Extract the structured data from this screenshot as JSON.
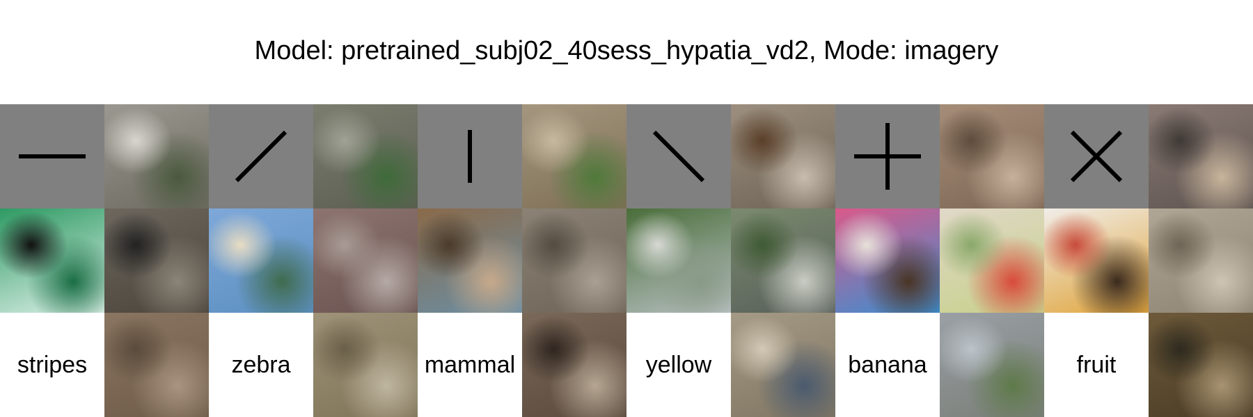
{
  "title": "Model: pretrained_subj02_40sess_hypatia_vd2, Mode: imagery",
  "colors": {
    "cue_background": "#808080",
    "cue_stroke": "#000000",
    "word_background": "#ffffff"
  },
  "columns": [
    {
      "cue": {
        "icon": "horizontal-line-icon"
      },
      "stimulus": {
        "icon": "surfer-wave-photo",
        "colors": [
          "#2e9a63",
          "#dff1ea",
          "#1a6e45",
          "#111111"
        ]
      },
      "word": "stripes"
    },
    {
      "recons": [
        {
          "icon": "recon-gray-wall-figure",
          "colors": [
            "#9b9890",
            "#6d6a60",
            "#4a5a3e",
            "#d8d6cf"
          ]
        },
        {
          "icon": "recon-dark-wall-figures",
          "colors": [
            "#6d675e",
            "#4a443b",
            "#8b8478",
            "#222222"
          ]
        },
        {
          "icon": "recon-brick-wall",
          "colors": [
            "#8a7561",
            "#6e5b48",
            "#a89480",
            "#5a4b3c"
          ]
        }
      ]
    },
    {
      "cue": {
        "icon": "diagonal-right-line-icon"
      },
      "stimulus": {
        "icon": "beach-boats-photo",
        "colors": [
          "#7ea8d9",
          "#5b8fc1",
          "#3f6b4e",
          "#e8dcc3"
        ]
      },
      "word": "zebra"
    },
    {
      "recons": [
        {
          "icon": "recon-stone-steps",
          "colors": [
            "#7b7d6f",
            "#5c5e52",
            "#3f6b3a",
            "#9fa294"
          ]
        },
        {
          "icon": "recon-town-buildings",
          "colors": [
            "#8d7470",
            "#6a5350",
            "#b5aaa5",
            "#a89b95"
          ]
        },
        {
          "icon": "recon-blurred-structure",
          "colors": [
            "#9e9378",
            "#7f7458",
            "#bfb6a0",
            "#6a5f48"
          ]
        }
      ]
    },
    {
      "cue": {
        "icon": "vertical-line-icon"
      },
      "stimulus": {
        "icon": "blue-bird-photo",
        "colors": [
          "#8a6a4a",
          "#6a8fa5",
          "#c7a98a",
          "#4a3a2a"
        ]
      },
      "word": "mammal"
    },
    {
      "recons": [
        {
          "icon": "recon-rocks-plants",
          "colors": [
            "#a5977f",
            "#7d6e55",
            "#4f7a3a",
            "#c7b9a0"
          ]
        },
        {
          "icon": "recon-rock-texture",
          "colors": [
            "#8b8275",
            "#6e6558",
            "#a9a093",
            "#544c41"
          ]
        },
        {
          "icon": "recon-arch-animal",
          "colors": [
            "#7a6858",
            "#5b4b3e",
            "#b5a592",
            "#2f2620"
          ]
        }
      ]
    },
    {
      "cue": {
        "icon": "diagonal-left-line-icon"
      },
      "stimulus": {
        "icon": "river-valley-photo",
        "colors": [
          "#4a6e3a",
          "#b8c0c2",
          "#8a9a88",
          "#d6d8d4"
        ]
      },
      "word": "yellow"
    },
    {
      "recons": [
        {
          "icon": "recon-animal-on-ramp",
          "colors": [
            "#9c8f7f",
            "#6e6456",
            "#c8bcae",
            "#5a3f28"
          ]
        },
        {
          "icon": "recon-street-scene",
          "colors": [
            "#7a8a6e",
            "#585f5a",
            "#c9ccc4",
            "#3f5a34"
          ]
        },
        {
          "icon": "recon-people-outdoors",
          "colors": [
            "#a59a85",
            "#7f7562",
            "#4a5a6e",
            "#d2c8b5"
          ]
        }
      ]
    },
    {
      "cue": {
        "icon": "plus-sign-icon"
      },
      "stimulus": {
        "icon": "donuts-photo",
        "colors": [
          "#d95a8a",
          "#3a8fd1",
          "#4a3424",
          "#e8e2da"
        ]
      },
      "word": "banana"
    },
    {
      "recons": [
        {
          "icon": "recon-stone-relief",
          "colors": [
            "#a58d78",
            "#7d6754",
            "#c6b09b",
            "#5e4c3d"
          ]
        },
        {
          "icon": "recon-fruit-plate",
          "colors": [
            "#e0d8c8",
            "#c7d18a",
            "#d94a3a",
            "#8aa86a"
          ]
        },
        {
          "icon": "recon-rocky-hill",
          "colors": [
            "#9aa0a5",
            "#7a7e78",
            "#5e7a4a",
            "#bcc3c9"
          ]
        }
      ]
    },
    {
      "cue": {
        "icon": "x-cross-icon"
      },
      "stimulus": {
        "icon": "floral-dress-women-photo",
        "colors": [
          "#f0ede8",
          "#e0a43a",
          "#3a2a1e",
          "#c84a3a"
        ]
      },
      "word": "fruit"
    },
    {
      "recons": [
        {
          "icon": "recon-figurines",
          "colors": [
            "#8a7a74",
            "#5e5450",
            "#c8b59c",
            "#3f3a36"
          ]
        },
        {
          "icon": "recon-draped-cloth",
          "colors": [
            "#b0a695",
            "#8e8474",
            "#cdc4b4",
            "#6e6556"
          ]
        },
        {
          "icon": "recon-wooden-stall",
          "colors": [
            "#6e5a3a",
            "#4a3c26",
            "#a89472",
            "#2e2a1e"
          ]
        }
      ]
    }
  ]
}
